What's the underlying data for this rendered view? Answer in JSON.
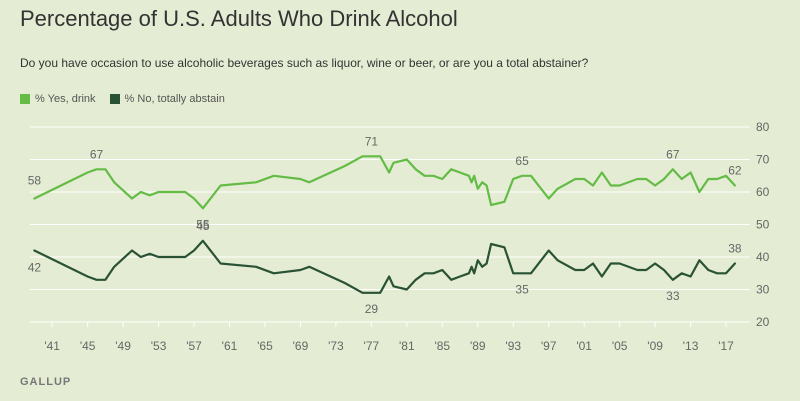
{
  "colors": {
    "yes": "#64bb46",
    "no": "#2a5234",
    "grid": "#ffffff",
    "tick": "#666666"
  },
  "chart_data": {
    "type": "line",
    "title": "Percentage of U.S. Adults Who Drink Alcohol",
    "subtitle": "Do you have occasion to use alcoholic beverages such as liquor, wine or beer, or are you a total abstainer?",
    "source": "GALLUP",
    "ylim": [
      20,
      80
    ],
    "xlim": [
      1938.5,
      2018.8
    ],
    "yticks": [
      80,
      70,
      60,
      50,
      40,
      30,
      20
    ],
    "xticks": [
      {
        "x": 1941,
        "label": "'41"
      },
      {
        "x": 1945,
        "label": "'45"
      },
      {
        "x": 1949,
        "label": "'49"
      },
      {
        "x": 1953,
        "label": "'53"
      },
      {
        "x": 1957,
        "label": "'57"
      },
      {
        "x": 1961,
        "label": "'61"
      },
      {
        "x": 1965,
        "label": "'65"
      },
      {
        "x": 1969,
        "label": "'69"
      },
      {
        "x": 1973,
        "label": "'73"
      },
      {
        "x": 1977,
        "label": "'77"
      },
      {
        "x": 1981,
        "label": "'81"
      },
      {
        "x": 1985,
        "label": "'85"
      },
      {
        "x": 1989,
        "label": "'89"
      },
      {
        "x": 1993,
        "label": "'93"
      },
      {
        "x": 1997,
        "label": "'97"
      },
      {
        "x": 2001,
        "label": "'01"
      },
      {
        "x": 2005,
        "label": "'05"
      },
      {
        "x": 2009,
        "label": "'09"
      },
      {
        "x": 2013,
        "label": "'13"
      },
      {
        "x": 2017,
        "label": "'17"
      }
    ],
    "legend": {
      "position": "top-left"
    },
    "series": [
      {
        "name": "% Yes, drink",
        "key": "yes",
        "points": [
          [
            1939,
            58
          ],
          [
            1945,
            66
          ],
          [
            1946,
            67
          ],
          [
            1947,
            67
          ],
          [
            1948,
            63
          ],
          [
            1950,
            58
          ],
          [
            1951,
            60
          ],
          [
            1952,
            59
          ],
          [
            1953,
            60
          ],
          [
            1956,
            60
          ],
          [
            1957,
            58
          ],
          [
            1958,
            55
          ],
          [
            1960,
            62
          ],
          [
            1964,
            63
          ],
          [
            1966,
            65
          ],
          [
            1969,
            64
          ],
          [
            1970,
            63
          ],
          [
            1974,
            68
          ],
          [
            1976,
            71
          ],
          [
            1978,
            71
          ],
          [
            1979,
            66
          ],
          [
            1979.5,
            69
          ],
          [
            1981,
            70
          ],
          [
            1982,
            67
          ],
          [
            1983,
            65
          ],
          [
            1984,
            65
          ],
          [
            1985,
            64
          ],
          [
            1986,
            67
          ],
          [
            1987,
            66
          ],
          [
            1988,
            65
          ],
          [
            1988.3,
            63
          ],
          [
            1988.6,
            65
          ],
          [
            1989,
            61
          ],
          [
            1989.5,
            63
          ],
          [
            1990,
            62
          ],
          [
            1990.5,
            56
          ],
          [
            1992,
            57
          ],
          [
            1993,
            64
          ],
          [
            1994,
            65
          ],
          [
            1995,
            65
          ],
          [
            1997,
            58
          ],
          [
            1998,
            61
          ],
          [
            2000,
            64
          ],
          [
            2001,
            64
          ],
          [
            2002,
            62
          ],
          [
            2003,
            66
          ],
          [
            2004,
            62
          ],
          [
            2005,
            62
          ],
          [
            2007,
            64
          ],
          [
            2008,
            64
          ],
          [
            2009,
            62
          ],
          [
            2010,
            64
          ],
          [
            2011,
            67
          ],
          [
            2012,
            64
          ],
          [
            2013,
            66
          ],
          [
            2014,
            60
          ],
          [
            2015,
            64
          ],
          [
            2016,
            64
          ],
          [
            2017,
            65
          ],
          [
            2018,
            62
          ]
        ],
        "labels": [
          {
            "x": 1939,
            "y": 58,
            "text": "58"
          },
          {
            "x": 1946,
            "y": 67,
            "text": "67"
          },
          {
            "x": 1958,
            "y": 55,
            "text": "55"
          },
          {
            "x": 1977,
            "y": 71,
            "text": "71"
          },
          {
            "x": 1994,
            "y": 65,
            "text": "65"
          },
          {
            "x": 2011,
            "y": 67,
            "text": "67"
          },
          {
            "x": 2018,
            "y": 62,
            "text": "62"
          }
        ]
      },
      {
        "name": "% No, totally abstain",
        "key": "no",
        "points": [
          [
            1939,
            42
          ],
          [
            1945,
            34
          ],
          [
            1946,
            33
          ],
          [
            1947,
            33
          ],
          [
            1948,
            37
          ],
          [
            1950,
            42
          ],
          [
            1951,
            40
          ],
          [
            1952,
            41
          ],
          [
            1953,
            40
          ],
          [
            1956,
            40
          ],
          [
            1957,
            42
          ],
          [
            1958,
            45
          ],
          [
            1960,
            38
          ],
          [
            1964,
            37
          ],
          [
            1966,
            35
          ],
          [
            1969,
            36
          ],
          [
            1970,
            37
          ],
          [
            1974,
            32
          ],
          [
            1976,
            29
          ],
          [
            1978,
            29
          ],
          [
            1979,
            34
          ],
          [
            1979.5,
            31
          ],
          [
            1981,
            30
          ],
          [
            1982,
            33
          ],
          [
            1983,
            35
          ],
          [
            1984,
            35
          ],
          [
            1985,
            36
          ],
          [
            1986,
            33
          ],
          [
            1987,
            34
          ],
          [
            1988,
            35
          ],
          [
            1988.3,
            37
          ],
          [
            1988.6,
            35
          ],
          [
            1989,
            39
          ],
          [
            1989.5,
            37
          ],
          [
            1990,
            38
          ],
          [
            1990.5,
            44
          ],
          [
            1992,
            43
          ],
          [
            1993,
            35
          ],
          [
            1994,
            35
          ],
          [
            1995,
            35
          ],
          [
            1997,
            42
          ],
          [
            1998,
            39
          ],
          [
            2000,
            36
          ],
          [
            2001,
            36
          ],
          [
            2002,
            38
          ],
          [
            2003,
            34
          ],
          [
            2004,
            38
          ],
          [
            2005,
            38
          ],
          [
            2007,
            36
          ],
          [
            2008,
            36
          ],
          [
            2009,
            38
          ],
          [
            2010,
            36
          ],
          [
            2011,
            33
          ],
          [
            2012,
            35
          ],
          [
            2013,
            34
          ],
          [
            2014,
            39
          ],
          [
            2015,
            36
          ],
          [
            2016,
            35
          ],
          [
            2017,
            35
          ],
          [
            2018,
            38
          ]
        ],
        "labels": [
          {
            "x": 1939,
            "y": 42,
            "text": "42"
          },
          {
            "x": 1958,
            "y": 45,
            "text": "45"
          },
          {
            "x": 1977,
            "y": 29,
            "text": "29"
          },
          {
            "x": 1994,
            "y": 35,
            "text": "35"
          },
          {
            "x": 2011,
            "y": 33,
            "text": "33"
          },
          {
            "x": 2018,
            "y": 38,
            "text": "38"
          }
        ]
      }
    ]
  }
}
